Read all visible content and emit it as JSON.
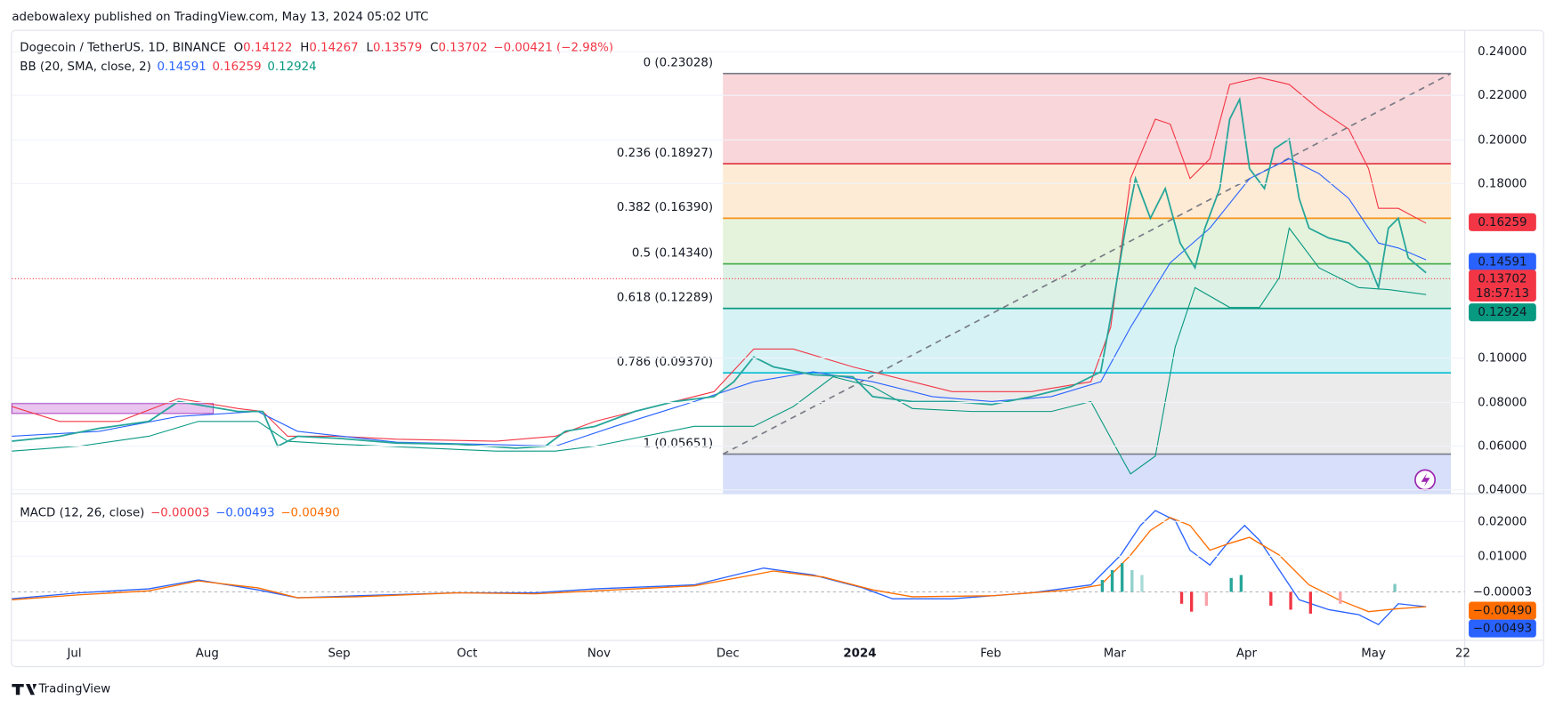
{
  "header": {
    "publisher": "adebowalexy published on TradingView.com, May 13, 2024 05:02 UTC"
  },
  "legend": {
    "symbol": "Dogecoin / TetherUS, 1D, BINANCE",
    "ohlc": [
      {
        "key": "O",
        "value": "0.14122"
      },
      {
        "key": "H",
        "value": "0.14267"
      },
      {
        "key": "L",
        "value": "0.13579"
      },
      {
        "key": "C",
        "value": "0.13702"
      }
    ],
    "change": "−0.00421 (−2.98%)",
    "bb": {
      "label": "BB (20, SMA, close, 2)",
      "values": [
        "0.14591",
        "0.16259",
        "0.12924"
      ]
    }
  },
  "fib_levels": [
    "0 (0.23028)",
    "0.236 (0.18927)",
    "0.382 (0.16390)",
    "0.5 (0.14340)",
    "0.618 (0.12289)",
    "0.786 (0.09370)",
    "1 (0.05651)"
  ],
  "price_axis": [
    "0.24000",
    "0.22000",
    "0.20000",
    "0.18000",
    "0.10000",
    "0.08000",
    "0.06000",
    "0.04000"
  ],
  "price_badges": {
    "upper": "0.16259",
    "middle": "0.14591",
    "last": "0.13702",
    "countdown": "18:57:13",
    "lower": "0.12924"
  },
  "macd": {
    "label": "MACD (12, 26, close)",
    "values": [
      "−0.00003",
      "−0.00493",
      "−0.00490"
    ],
    "axis": [
      "0.02000",
      "0.01000"
    ],
    "badges": [
      "−0.00003",
      "−0.00490",
      "−0.00493"
    ]
  },
  "time_axis": [
    "Jul",
    "Aug",
    "Sep",
    "Oct",
    "Nov",
    "Dec",
    "2024",
    "Feb",
    "Mar",
    "Apr",
    "May",
    "22"
  ],
  "footer": {
    "brand": "TradingView"
  }
}
